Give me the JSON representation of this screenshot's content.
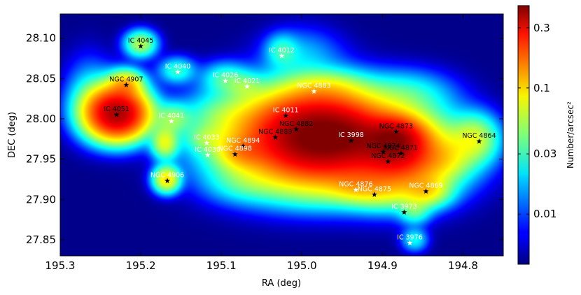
{
  "chart_data": {
    "type": "heatmap",
    "xlabel": "RA (deg)",
    "ylabel": "DEC (deg)",
    "xlim": [
      195.3,
      194.75
    ],
    "ylim": [
      27.83,
      28.13
    ],
    "xticks": [
      "195.3",
      "195.2",
      "195.1",
      "195.0",
      "194.9",
      "194.8"
    ],
    "yticks": [
      "28.10",
      "28.05",
      "28.00",
      "27.95",
      "27.90",
      "27.85"
    ],
    "xtick_values": [
      195.3,
      195.2,
      195.1,
      195.0,
      194.9,
      194.8
    ],
    "ytick_values": [
      28.1,
      28.05,
      28.0,
      27.95,
      27.9,
      27.85
    ],
    "colorbar": {
      "label": "Number/arcsec²",
      "scale": "log",
      "ticks": [
        "0.3",
        "0.1",
        "0.03",
        "0.01"
      ],
      "tick_values": [
        0.3,
        0.1,
        0.03,
        0.01
      ],
      "range": [
        0.004,
        0.45
      ]
    },
    "background_color": "#00008f",
    "blobs": [
      {
        "ra": 194.975,
        "dec": 27.98,
        "value": 0.35,
        "sx": 0.045,
        "sy": 0.03
      },
      {
        "ra": 195.009,
        "dec": 27.975,
        "value": 0.15,
        "sx": 0.06,
        "sy": 0.035
      },
      {
        "ra": 195.229,
        "dec": 28.006,
        "value": 0.32,
        "sx": 0.022,
        "sy": 0.018
      },
      {
        "ra": 194.887,
        "dec": 27.96,
        "value": 0.12,
        "sx": 0.05,
        "sy": 0.032
      },
      {
        "ra": 194.885,
        "dec": 27.975,
        "value": 0.25,
        "sx": 0.022,
        "sy": 0.016
      },
      {
        "ra": 194.88,
        "dec": 27.95,
        "value": 0.1,
        "sx": 0.03,
        "sy": 0.02
      },
      {
        "ra": 194.845,
        "dec": 27.91,
        "value": 0.06,
        "sx": 0.018,
        "sy": 0.012
      },
      {
        "ra": 194.9,
        "dec": 27.91,
        "value": 0.035,
        "sx": 0.025,
        "sy": 0.014
      },
      {
        "ra": 194.935,
        "dec": 27.915,
        "value": 0.03,
        "sx": 0.02,
        "sy": 0.012
      },
      {
        "ra": 194.86,
        "dec": 27.885,
        "value": 0.025,
        "sx": 0.012,
        "sy": 0.01
      },
      {
        "ra": 194.86,
        "dec": 27.85,
        "value": 0.02,
        "sx": 0.01,
        "sy": 0.009
      },
      {
        "ra": 194.785,
        "dec": 27.975,
        "value": 0.05,
        "sx": 0.018,
        "sy": 0.018
      },
      {
        "ra": 195.218,
        "dec": 28.044,
        "value": 0.07,
        "sx": 0.013,
        "sy": 0.01
      },
      {
        "ra": 195.2,
        "dec": 28.093,
        "value": 0.05,
        "sx": 0.012,
        "sy": 0.01
      },
      {
        "ra": 195.168,
        "dec": 27.925,
        "value": 0.08,
        "sx": 0.01,
        "sy": 0.01
      },
      {
        "ra": 195.17,
        "dec": 27.97,
        "value": 0.06,
        "sx": 0.01,
        "sy": 0.012
      },
      {
        "ra": 195.16,
        "dec": 28.0,
        "value": 0.035,
        "sx": 0.014,
        "sy": 0.012
      },
      {
        "ra": 195.155,
        "dec": 28.06,
        "value": 0.025,
        "sx": 0.014,
        "sy": 0.01
      },
      {
        "ra": 195.095,
        "dec": 28.05,
        "value": 0.025,
        "sx": 0.018,
        "sy": 0.012
      },
      {
        "ra": 194.97,
        "dec": 28.04,
        "value": 0.025,
        "sx": 0.03,
        "sy": 0.012
      },
      {
        "ra": 195.025,
        "dec": 28.085,
        "value": 0.02,
        "sx": 0.012,
        "sy": 0.012
      },
      {
        "ra": 195.07,
        "dec": 28.04,
        "value": 0.02,
        "sx": 0.014,
        "sy": 0.01
      },
      {
        "ra": 194.94,
        "dec": 27.98,
        "value": 0.05,
        "sx": 0.02,
        "sy": 0.015
      },
      {
        "ra": 195.075,
        "dec": 27.958,
        "value": 0.05,
        "sx": 0.018,
        "sy": 0.012
      },
      {
        "ra": 195.12,
        "dec": 27.975,
        "value": 0.02,
        "sx": 0.015,
        "sy": 0.01
      },
      {
        "ra": 195.1,
        "dec": 28.005,
        "value": 0.015,
        "sx": 0.03,
        "sy": 0.018
      },
      {
        "ra": 194.87,
        "dec": 28.03,
        "value": 0.02,
        "sx": 0.035,
        "sy": 0.018
      },
      {
        "ra": 194.82,
        "dec": 27.95,
        "value": 0.03,
        "sx": 0.02,
        "sy": 0.018
      },
      {
        "ra": 195.265,
        "dec": 28.03,
        "value": 0.012,
        "sx": 0.018,
        "sy": 0.03
      },
      {
        "ra": 195.235,
        "dec": 28.015,
        "value": 0.05,
        "sx": 0.025,
        "sy": 0.022
      },
      {
        "ra": 195.07,
        "dec": 27.92,
        "value": 0.015,
        "sx": 0.03,
        "sy": 0.015
      },
      {
        "ra": 194.98,
        "dec": 27.91,
        "value": 0.012,
        "sx": 0.04,
        "sy": 0.015
      },
      {
        "ra": 195.0,
        "dec": 28.08,
        "value": 0.012,
        "sx": 0.03,
        "sy": 0.02
      }
    ],
    "annotations": [
      {
        "label": "IC 4045",
        "ra": 195.2,
        "dec": 28.09,
        "marker": "black",
        "text_color": "black"
      },
      {
        "label": "NGC 4907",
        "ra": 195.218,
        "dec": 28.042,
        "marker": "black",
        "text_color": "black"
      },
      {
        "label": "IC 4051",
        "ra": 195.23,
        "dec": 28.005,
        "marker": "black",
        "text_color": "black"
      },
      {
        "label": "IC 4040",
        "ra": 195.154,
        "dec": 28.058,
        "marker": "white",
        "text_color": "white"
      },
      {
        "label": "IC 4041",
        "ra": 195.162,
        "dec": 27.997,
        "marker": "white",
        "text_color": "white"
      },
      {
        "label": "IC 4026",
        "ra": 195.095,
        "dec": 28.047,
        "marker": "white",
        "text_color": "white"
      },
      {
        "label": "IC 4021",
        "ra": 195.068,
        "dec": 28.04,
        "marker": "white",
        "text_color": "white"
      },
      {
        "label": "IC 4012",
        "ra": 195.025,
        "dec": 28.078,
        "marker": "white",
        "text_color": "white"
      },
      {
        "label": "NGC 4883",
        "ra": 194.985,
        "dec": 28.034,
        "marker": "white",
        "text_color": "white"
      },
      {
        "label": "IC 4011",
        "ra": 195.02,
        "dec": 28.004,
        "marker": "black",
        "text_color": "white"
      },
      {
        "label": "NGC 4882",
        "ra": 195.007,
        "dec": 27.987,
        "marker": "black",
        "text_color": "black"
      },
      {
        "label": "NGC 4889",
        "ra": 195.033,
        "dec": 27.977,
        "marker": "black",
        "text_color": "black"
      },
      {
        "label": "IC 4033",
        "ra": 195.118,
        "dec": 27.97,
        "marker": "white",
        "text_color": "white"
      },
      {
        "label": "NGC 4894",
        "ra": 195.073,
        "dec": 27.966,
        "marker": "black",
        "text_color": "white"
      },
      {
        "label": "IC 4030",
        "ra": 195.117,
        "dec": 27.955,
        "marker": "white",
        "text_color": "white"
      },
      {
        "label": "NGC 4898",
        "ra": 195.083,
        "dec": 27.956,
        "marker": "black",
        "text_color": "white"
      },
      {
        "label": "NGC 4906",
        "ra": 195.167,
        "dec": 27.923,
        "marker": "black",
        "text_color": "white"
      },
      {
        "label": "IC 3998",
        "ra": 194.939,
        "dec": 27.973,
        "marker": "black",
        "text_color": "white"
      },
      {
        "label": "NGC 4873",
        "ra": 194.883,
        "dec": 27.984,
        "marker": "black",
        "text_color": "black"
      },
      {
        "label": "NGC 4874",
        "ra": 194.899,
        "dec": 27.959,
        "marker": "black",
        "text_color": "black"
      },
      {
        "label": "NGC 4871",
        "ra": 194.877,
        "dec": 27.957,
        "marker": "black",
        "text_color": "black"
      },
      {
        "label": "NGC 4872",
        "ra": 194.893,
        "dec": 27.947,
        "marker": "black",
        "text_color": "black"
      },
      {
        "label": "NGC 4864",
        "ra": 194.78,
        "dec": 27.972,
        "marker": "black",
        "text_color": "black"
      },
      {
        "label": "NGC 4876",
        "ra": 194.933,
        "dec": 27.912,
        "marker": "white",
        "text_color": "white"
      },
      {
        "label": "NGC 4875",
        "ra": 194.91,
        "dec": 27.906,
        "marker": "black",
        "text_color": "white"
      },
      {
        "label": "NGC 4869",
        "ra": 194.846,
        "dec": 27.91,
        "marker": "black",
        "text_color": "white"
      },
      {
        "label": "IC 3973",
        "ra": 194.873,
        "dec": 27.884,
        "marker": "black",
        "text_color": "white"
      },
      {
        "label": "IC 3976",
        "ra": 194.866,
        "dec": 27.846,
        "marker": "white",
        "text_color": "white"
      }
    ]
  }
}
